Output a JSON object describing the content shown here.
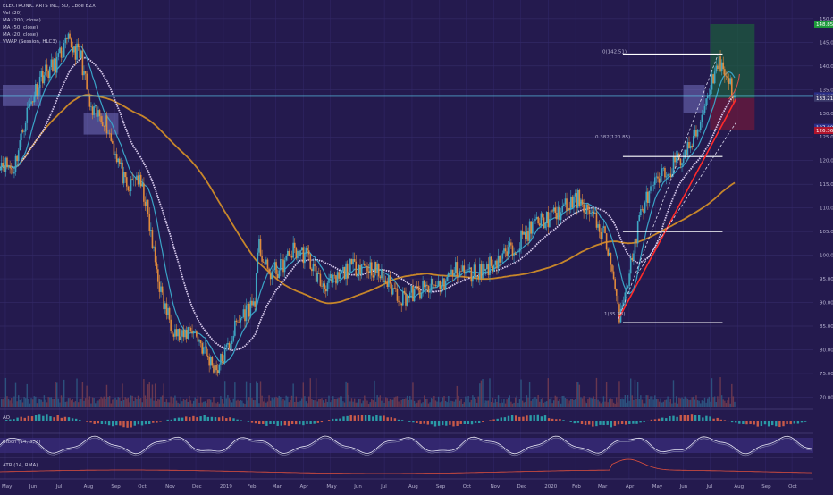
{
  "legend": {
    "symbol": "ELECTRONIC ARTS INC, 5D, Cboe BZX",
    "indicators": [
      "Vol (20)",
      "MA (200, close)",
      "MA (50, close)",
      "MA (20, close)",
      "VWAP (Session, HLC3)"
    ]
  },
  "panes": {
    "ao_label": "AO",
    "stoch_label": "Stoch (14, 3, 3)",
    "atr_label": "ATR (14, RMA)"
  },
  "fib_labels": {
    "top": "0(142.51)",
    "f382": "0.382(120.85)",
    "bottom": "1(85.73)"
  },
  "price_tags": [
    {
      "value": "148.85",
      "color": "#1e9b3c"
    },
    {
      "value": "133.66",
      "color": "#2a2f88"
    },
    {
      "value": "133.21",
      "color": "#3b3a6b"
    },
    {
      "value": "127.00",
      "color": "#2a2f88"
    },
    {
      "value": "126.36",
      "color": "#b0142c"
    }
  ],
  "colors": {
    "background": "#241a4e",
    "ma200": "#c7862a",
    "ma50": "#d8cbee",
    "ma20": "#3aa3c7",
    "candle_up": "#3ea7c4",
    "candle_down": "#e08a3c",
    "horizontal_line": "#5fd3f3",
    "trend_line": "#ff2a2a",
    "reward_zone": "#1c5e3c",
    "risk_zone": "#6b1a3c"
  },
  "chart_data": {
    "type": "candlestick",
    "title": "ELECTRONIC ARTS INC, 5D, Cboe BZX",
    "x_ticks": [
      "May",
      "Jun",
      "Jul",
      "Aug",
      "Sep",
      "Oct",
      "Nov",
      "Dec",
      "2019",
      "Feb",
      "Mar",
      "Apr",
      "May",
      "Jun",
      "Jul",
      "Aug",
      "Sep",
      "Oct",
      "Nov",
      "Dec",
      "2020",
      "Feb",
      "Mar",
      "Apr",
      "May",
      "Jun",
      "Jul",
      "Aug",
      "Sep",
      "Oct"
    ],
    "y_ticks": [
      150,
      145,
      140,
      135,
      130,
      125,
      120,
      115,
      110,
      105,
      100,
      95,
      90,
      85,
      80,
      75,
      70
    ],
    "ylim": [
      68,
      153
    ],
    "price_path": [
      [
        "2018-04-25",
        120
      ],
      [
        "2018-05-10",
        118
      ],
      [
        "2018-05-25",
        130
      ],
      [
        "2018-06-10",
        138
      ],
      [
        "2018-06-25",
        140
      ],
      [
        "2018-07-10",
        145
      ],
      [
        "2018-07-25",
        142
      ],
      [
        "2018-08-05",
        130
      ],
      [
        "2018-08-20",
        129
      ],
      [
        "2018-09-05",
        120
      ],
      [
        "2018-09-15",
        113
      ],
      [
        "2018-09-25",
        117
      ],
      [
        "2018-10-05",
        112
      ],
      [
        "2018-10-15",
        100
      ],
      [
        "2018-10-25",
        90
      ],
      [
        "2018-11-05",
        85
      ],
      [
        "2018-11-15",
        82
      ],
      [
        "2018-11-25",
        85
      ],
      [
        "2018-12-05",
        82
      ],
      [
        "2018-12-15",
        78
      ],
      [
        "2018-12-25",
        76
      ],
      [
        "2019-01-05",
        80
      ],
      [
        "2019-01-15",
        85
      ],
      [
        "2019-01-25",
        88
      ],
      [
        "2019-02-05",
        90
      ],
      [
        "2019-02-10",
        102
      ],
      [
        "2019-02-20",
        96
      ],
      [
        "2019-03-05",
        97
      ],
      [
        "2019-03-20",
        101
      ],
      [
        "2019-04-05",
        100
      ],
      [
        "2019-04-20",
        94
      ],
      [
        "2019-05-05",
        94
      ],
      [
        "2019-05-20",
        97
      ],
      [
        "2019-06-05",
        98
      ],
      [
        "2019-06-20",
        97
      ],
      [
        "2019-07-05",
        94
      ],
      [
        "2019-07-20",
        91
      ],
      [
        "2019-08-05",
        92
      ],
      [
        "2019-08-20",
        93
      ],
      [
        "2019-09-05",
        94
      ],
      [
        "2019-09-20",
        97
      ],
      [
        "2019-10-05",
        96
      ],
      [
        "2019-10-20",
        97
      ],
      [
        "2019-11-05",
        99
      ],
      [
        "2019-11-20",
        101
      ],
      [
        "2019-12-05",
        104
      ],
      [
        "2019-12-20",
        107
      ],
      [
        "2020-01-05",
        108
      ],
      [
        "2020-01-20",
        110
      ],
      [
        "2020-02-05",
        112
      ],
      [
        "2020-02-20",
        108
      ],
      [
        "2020-03-05",
        104
      ],
      [
        "2020-03-12",
        98
      ],
      [
        "2020-03-20",
        87
      ],
      [
        "2020-04-01",
        96
      ],
      [
        "2020-04-15",
        110
      ],
      [
        "2020-05-01",
        115
      ],
      [
        "2020-05-15",
        118
      ],
      [
        "2020-06-01",
        121
      ],
      [
        "2020-06-15",
        125
      ],
      [
        "2020-07-01",
        136
      ],
      [
        "2020-07-10",
        141
      ],
      [
        "2020-07-20",
        138
      ],
      [
        "2020-07-30",
        133
      ]
    ],
    "series": [
      {
        "name": "MA (200, close)"
      },
      {
        "name": "MA (50, close)"
      },
      {
        "name": "MA (20, close)"
      },
      {
        "name": "VWAP (Session, HLC3)"
      }
    ],
    "fibonacci": [
      {
        "level": 0,
        "price": 142.51
      },
      {
        "level": 0.382,
        "price": 120.85
      },
      {
        "level": 1,
        "price": 85.73
      }
    ],
    "horizontal_line": 133.66,
    "position": {
      "entry": 133.21,
      "target": 148.85,
      "stop": 126.36
    }
  }
}
